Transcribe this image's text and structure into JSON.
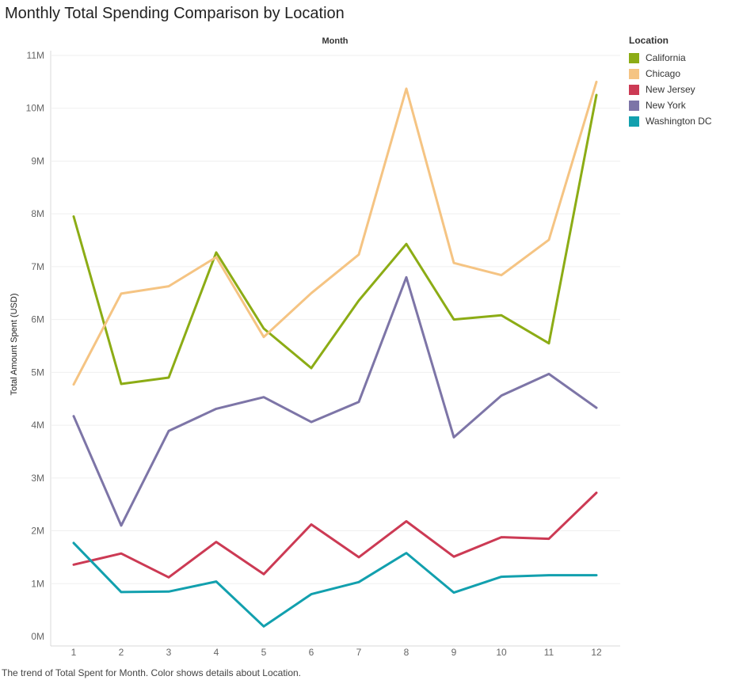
{
  "chart_data": {
    "type": "line",
    "title": "Monthly Total Spending Comparison by Location",
    "caption": "The trend of Total Spent for Month.  Color shows details about Location.",
    "x_header": "Month",
    "ylabel": "Total Amount Spent (USD)",
    "x": [
      1,
      2,
      3,
      4,
      5,
      6,
      7,
      8,
      9,
      10,
      11,
      12
    ],
    "x_ticks": [
      "1",
      "2",
      "3",
      "4",
      "5",
      "6",
      "7",
      "8",
      "9",
      "10",
      "11",
      "12"
    ],
    "ylim": [
      0,
      11000000
    ],
    "y_ticks": [
      {
        "value": 0,
        "label": "0M"
      },
      {
        "value": 1000000,
        "label": "1M"
      },
      {
        "value": 2000000,
        "label": "2M"
      },
      {
        "value": 3000000,
        "label": "3M"
      },
      {
        "value": 4000000,
        "label": "4M"
      },
      {
        "value": 5000000,
        "label": "5M"
      },
      {
        "value": 6000000,
        "label": "6M"
      },
      {
        "value": 7000000,
        "label": "7M"
      },
      {
        "value": 8000000,
        "label": "8M"
      },
      {
        "value": 9000000,
        "label": "9M"
      },
      {
        "value": 10000000,
        "label": "10M"
      },
      {
        "value": 11000000,
        "label": "11M"
      }
    ],
    "grid": true,
    "legend": {
      "title": "Location",
      "placement": "right"
    },
    "series": [
      {
        "name": "California",
        "color": "#8cac15",
        "values": [
          7950000,
          4780000,
          4900000,
          7270000,
          5830000,
          5080000,
          6360000,
          7430000,
          6000000,
          6080000,
          5550000,
          10250000
        ]
      },
      {
        "name": "Chicago",
        "color": "#f5c483",
        "values": [
          4770000,
          6490000,
          6630000,
          7180000,
          5670000,
          6500000,
          7230000,
          10370000,
          7070000,
          6840000,
          7510000,
          10500000
        ]
      },
      {
        "name": "New Jersey",
        "color": "#cc3a54",
        "values": [
          1360000,
          1570000,
          1120000,
          1790000,
          1180000,
          2120000,
          1500000,
          2180000,
          1510000,
          1880000,
          1850000,
          2720000
        ]
      },
      {
        "name": "New York",
        "color": "#7d75a7",
        "values": [
          4170000,
          2100000,
          3890000,
          4310000,
          4530000,
          4060000,
          4440000,
          6800000,
          3770000,
          4560000,
          4970000,
          4330000
        ]
      },
      {
        "name": "Washington DC",
        "color": "#12a0ae",
        "values": [
          1770000,
          840000,
          850000,
          1040000,
          190000,
          800000,
          1030000,
          1580000,
          830000,
          1130000,
          1160000,
          1160000
        ]
      }
    ]
  }
}
